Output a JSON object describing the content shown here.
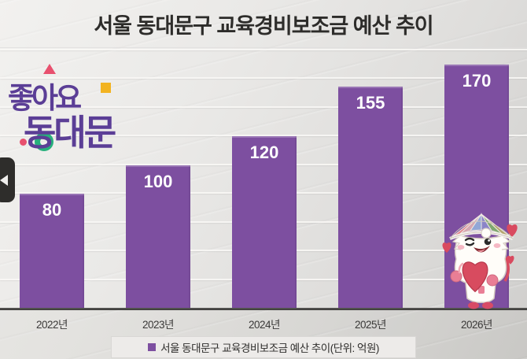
{
  "page": {
    "title": "서울 동대문구 교육경비보조금 예산 추이"
  },
  "logo": {
    "line1": "좋아요",
    "line2": "동대문",
    "colors": {
      "purple": "#5b3e96",
      "pink": "#e8506e",
      "yellow": "#f2b321",
      "green": "#27b07c"
    }
  },
  "nav": {
    "prev_icon": "left-triangle"
  },
  "chart_data": {
    "type": "bar",
    "title": "서울 동대문구 교육경비보조금 예산 추이",
    "legend_label": "서울 동대문구 교육경비보조금 예산 추이(단위: 억원)",
    "unit_label": "단위: 억원",
    "categories": [
      "2022년",
      "2023년",
      "2024년",
      "2025년",
      "2026년"
    ],
    "values": [
      80,
      100,
      120,
      155,
      170
    ],
    "bar_color": "#7d4fa0",
    "value_label_color": "#ffffff",
    "ylim": [
      0,
      180
    ],
    "gridline_interval": 20,
    "grid": true,
    "legend_position": "bottom"
  }
}
